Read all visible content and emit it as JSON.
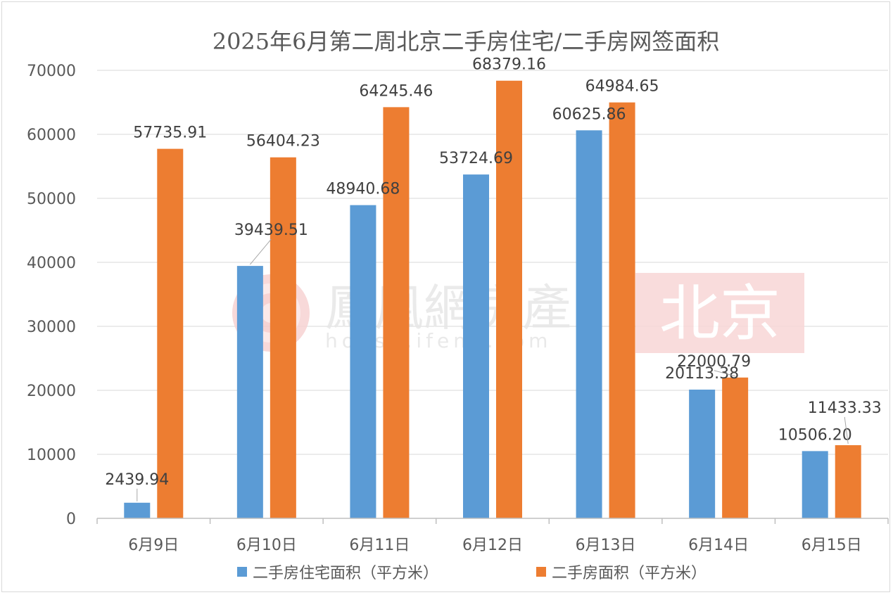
{
  "chart_data": {
    "type": "bar",
    "title": "2025年6月第二周北京二手房住宅/二手房网签面积",
    "categories": [
      "6月9日",
      "6月10日",
      "6月11日",
      "6月12日",
      "6月13日",
      "6月14日",
      "6月15日"
    ],
    "series": [
      {
        "name": "二手房住宅面积（平方米）",
        "color": "#5b9bd5",
        "values": [
          2439.94,
          39439.51,
          48940.68,
          53724.69,
          60625.86,
          20113.38,
          10506.2
        ],
        "labels": [
          "2439.94",
          "39439.51",
          "48940.68",
          "53724.69",
          "60625.86",
          "20113.38",
          "10506.20"
        ]
      },
      {
        "name": "二手房面积（平方米）",
        "color": "#ed7d31",
        "values": [
          57735.91,
          56404.23,
          64245.46,
          68379.16,
          64984.65,
          22000.79,
          11433.33
        ],
        "labels": [
          "57735.91",
          "56404.23",
          "64245.46",
          "68379.16",
          "64984.65",
          "22000.79",
          "11433.33"
        ]
      }
    ],
    "ylim": [
      0,
      70000
    ],
    "yticks": [
      "0",
      "10000",
      "20000",
      "30000",
      "40000",
      "50000",
      "60000",
      "70000"
    ],
    "grid": true,
    "legend": "bottom"
  },
  "watermark": {
    "brand": "鳳凰網房產",
    "url": "house.ifeng.com",
    "city": "北京"
  }
}
